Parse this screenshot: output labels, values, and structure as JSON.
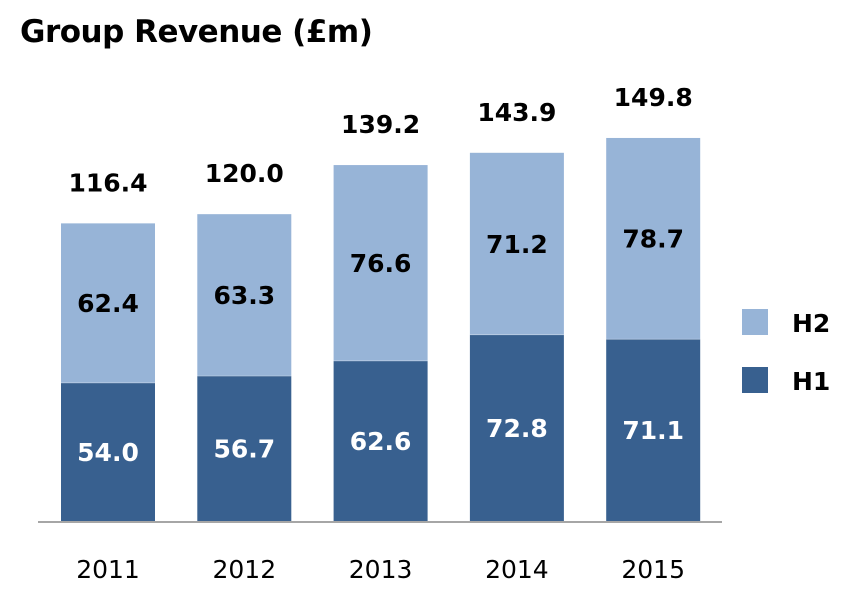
{
  "chart_data": {
    "type": "bar",
    "stacked": true,
    "title": "Group Revenue (£m)",
    "xlabel": "",
    "ylabel": "",
    "categories": [
      "2011",
      "2012",
      "2013",
      "2014",
      "2015"
    ],
    "series": [
      {
        "name": "H1",
        "color": "#38608F",
        "label_color": "#ffffff",
        "values": [
          54.0,
          56.7,
          62.6,
          72.8,
          71.1
        ]
      },
      {
        "name": "H2",
        "color": "#97B4D7",
        "label_color": "#000000",
        "values": [
          62.4,
          63.3,
          76.6,
          71.2,
          78.7
        ]
      }
    ],
    "totals": [
      116.4,
      120.0,
      139.2,
      143.9,
      149.8
    ],
    "value_labels": {
      "H1": [
        "54.0",
        "56.7",
        "62.6",
        "72.8",
        "71.1"
      ],
      "H2": [
        "62.4",
        "63.3",
        "76.6",
        "71.2",
        "78.7"
      ],
      "totals": [
        "116.4",
        "120.0",
        "139.2",
        "143.9",
        "149.8"
      ]
    },
    "ylim": [
      0,
      150
    ],
    "grid": false,
    "legend": {
      "position": "right",
      "entries": [
        "H2",
        "H1"
      ]
    },
    "axis_color": "#A6A6A6"
  }
}
